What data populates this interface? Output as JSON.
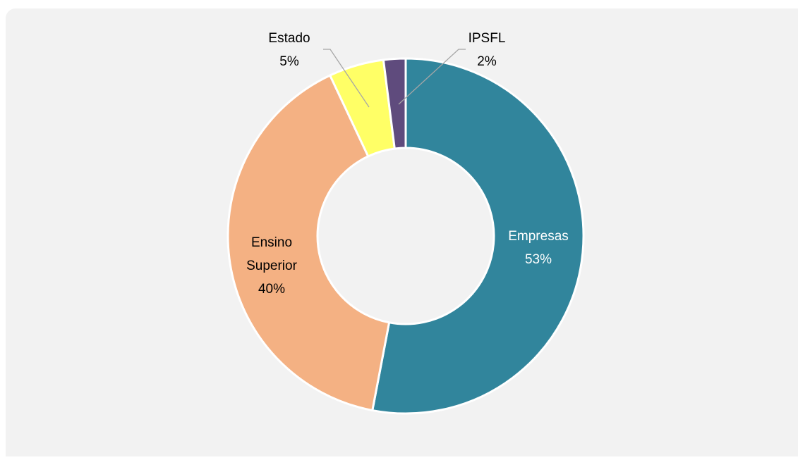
{
  "chart_data": {
    "type": "donut",
    "categories": [
      "Empresas",
      "Ensino Superior",
      "Estado",
      "IPSFL"
    ],
    "values": [
      53,
      40,
      5,
      2
    ],
    "value_labels": [
      "53%",
      "40%",
      "5%",
      "2%"
    ],
    "colors": [
      "#31859c",
      "#f4b183",
      "#ffff66",
      "#5f4b7d"
    ]
  }
}
